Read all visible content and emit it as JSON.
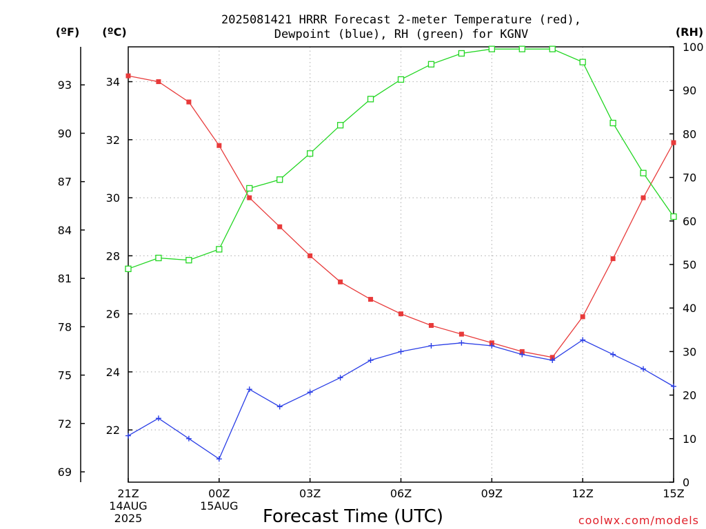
{
  "title_line1": "2025081421 HRRR Forecast 2-meter Temperature (red),",
  "title_line2": "Dewpoint (blue), RH (green) for KGNV",
  "unit_f": "(ºF)",
  "unit_c": "(ºC)",
  "unit_rh": "(RH)",
  "x_axis_title": "Forecast Time (UTC)",
  "credit": "coolwx.com/models",
  "colors": {
    "temperature": "#e83a3a",
    "dewpoint": "#2a3ee6",
    "rh": "#22d622",
    "grid": "#b8b8b8"
  },
  "chart_data": {
    "type": "line",
    "x_hours": [
      0,
      1,
      2,
      3,
      4,
      5,
      6,
      7,
      8,
      9,
      10,
      11,
      12,
      13,
      14,
      15,
      16,
      17,
      18
    ],
    "x_ticks": [
      {
        "hour": 0,
        "lines": [
          "21Z",
          "14AUG",
          "2025"
        ]
      },
      {
        "hour": 3,
        "lines": [
          "00Z",
          "15AUG"
        ]
      },
      {
        "hour": 6,
        "lines": [
          "03Z"
        ]
      },
      {
        "hour": 9,
        "lines": [
          "06Z"
        ]
      },
      {
        "hour": 12,
        "lines": [
          "09Z"
        ]
      },
      {
        "hour": 15,
        "lines": [
          "12Z"
        ]
      },
      {
        "hour": 18,
        "lines": [
          "15Z"
        ]
      }
    ],
    "xlim": [
      0,
      18
    ],
    "ylim_c": [
      20.2,
      35.2
    ],
    "y_ticks_c": [
      22,
      24,
      26,
      28,
      30,
      32,
      34
    ],
    "y_ticks_f": [
      69,
      72,
      75,
      78,
      81,
      84,
      87,
      90,
      93
    ],
    "ylim_rh": [
      0,
      100
    ],
    "y_ticks_rh": [
      0,
      10,
      20,
      30,
      40,
      50,
      60,
      70,
      80,
      90,
      100
    ],
    "series": [
      {
        "name": "Temperature",
        "key": "temperature",
        "marker": "filled-square",
        "values": [
          34.2,
          34.0,
          33.3,
          31.8,
          30.0,
          29.0,
          28.0,
          27.1,
          26.5,
          26.0,
          25.6,
          25.3,
          25.0,
          24.7,
          24.5,
          25.9,
          27.9,
          30.0,
          31.9
        ]
      },
      {
        "name": "Dewpoint",
        "key": "dewpoint",
        "marker": "plus",
        "values": [
          21.8,
          22.4,
          21.7,
          21.0,
          23.4,
          22.8,
          23.3,
          23.8,
          24.4,
          24.7,
          24.9,
          25.0,
          24.9,
          24.6,
          24.4,
          25.1,
          24.6,
          24.1,
          23.5
        ]
      },
      {
        "name": "RH",
        "key": "rh",
        "marker": "open-square",
        "values": [
          49,
          51.5,
          51,
          53.5,
          67.5,
          69.5,
          75.5,
          82,
          88,
          92.5,
          96,
          98.5,
          99.5,
          99.5,
          99.5,
          96.5,
          82.5,
          71,
          61
        ]
      }
    ],
    "grid": true
  }
}
